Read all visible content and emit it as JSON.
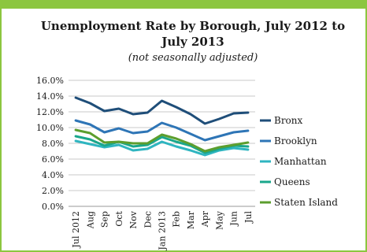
{
  "chart_data": {
    "type": "line",
    "title": "Unemployment Rate by Borough, July 2012 to July 2013",
    "title_line1": "Unemployment Rate by Borough, July 2012 to",
    "title_line2": "July 2013",
    "subtitle": "(not seasonally adjusted)",
    "xlabel": "",
    "ylabel": "",
    "categories": [
      "Jul 2012",
      "Aug",
      "Sep",
      "Oct",
      "Nov",
      "Dec",
      "Jan 2013",
      "Feb",
      "Mar",
      "Apr",
      "May",
      "Jun",
      "Jul"
    ],
    "yticks": [
      "0.0%",
      "2.0%",
      "4.0%",
      "6.0%",
      "8.0%",
      "10.0%",
      "12.0%",
      "14.0%",
      "16.0%"
    ],
    "ylim": [
      0,
      16
    ],
    "grid": "horizontal",
    "legend_position": "right",
    "series": [
      {
        "name": "Bronx",
        "color": "#1f4e79",
        "values": [
          13.8,
          13.1,
          12.1,
          12.4,
          11.7,
          11.9,
          13.4,
          12.6,
          11.7,
          10.5,
          11.1,
          11.8,
          11.9
        ]
      },
      {
        "name": "Brooklyn",
        "color": "#2e75b6",
        "values": [
          10.9,
          10.4,
          9.4,
          9.9,
          9.3,
          9.5,
          10.6,
          10.0,
          9.2,
          8.4,
          8.9,
          9.4,
          9.6
        ]
      },
      {
        "name": "Manhattan",
        "color": "#2fb5c0",
        "values": [
          8.3,
          7.9,
          7.5,
          7.8,
          7.1,
          7.3,
          8.2,
          7.6,
          7.1,
          6.5,
          7.1,
          7.4,
          7.2
        ]
      },
      {
        "name": "Queens",
        "color": "#1aa78c",
        "values": [
          8.9,
          8.5,
          7.7,
          8.2,
          7.6,
          7.8,
          8.8,
          8.2,
          7.7,
          6.8,
          7.3,
          7.7,
          7.6
        ]
      },
      {
        "name": "Staten Island",
        "color": "#5c9e2e",
        "values": [
          9.7,
          9.3,
          8.1,
          8.2,
          8.0,
          8.0,
          9.1,
          8.6,
          7.9,
          7.0,
          7.5,
          7.8,
          8.1
        ]
      }
    ]
  }
}
